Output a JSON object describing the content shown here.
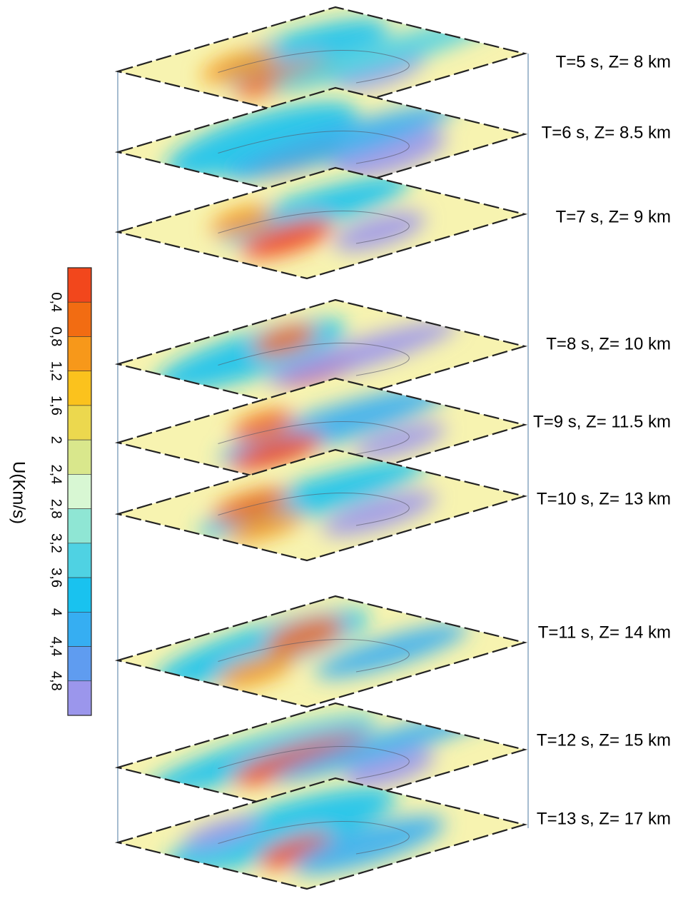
{
  "colorbar": {
    "label": "U(Km/s)",
    "colors": [
      "#f2471c",
      "#f26c12",
      "#f7981a",
      "#fbc21d",
      "#ecd84e",
      "#d9e78c",
      "#d8f7d3",
      "#8fe6d4",
      "#4fd2e3",
      "#19c2ef",
      "#36aef2",
      "#5f9cf0",
      "#9b96ec"
    ],
    "ticks": [
      {
        "value": 0.4,
        "label": "0,4"
      },
      {
        "value": 0.8,
        "label": "0,8"
      },
      {
        "value": 1.2,
        "label": "1,2"
      },
      {
        "value": 1.6,
        "label": "1,6"
      },
      2,
      {
        "value": 2.4,
        "label": "2,4"
      },
      {
        "value": 2.8,
        "label": "2,8"
      },
      {
        "value": 3.2,
        "label": "3,2"
      },
      {
        "value": 3.6,
        "label": "3,6"
      },
      4,
      {
        "value": 4.4,
        "label": "4,4"
      },
      {
        "value": 4.8,
        "label": "4,8"
      }
    ]
  },
  "layers": [
    {
      "label": "T=5 s, Z= 8 km"
    },
    {
      "label": "T=6 s, Z= 8.5 km"
    },
    {
      "label": "T=7 s, Z= 9 km"
    },
    {
      "label": "T=8 s, Z= 10 km"
    },
    {
      "label": "T=9 s, Z= 11.5 km"
    },
    {
      "label": "T=10 s, Z= 13 km"
    },
    {
      "label": "T=11 s, Z= 14 km"
    },
    {
      "label": "T=12 s, Z= 15 km"
    },
    {
      "label": "T=13 s, Z= 17 km"
    }
  ]
}
